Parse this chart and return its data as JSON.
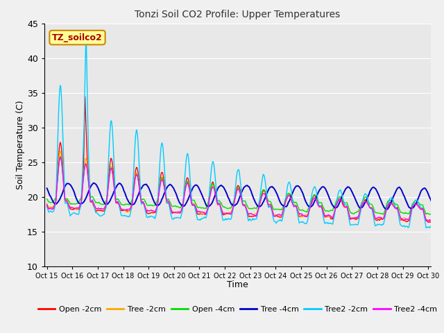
{
  "title": "Tonzi Soil CO2 Profile: Upper Temperatures",
  "xlabel": "Time",
  "ylabel": "Soil Temperature (C)",
  "ylim": [
    10,
    45
  ],
  "yticks": [
    10,
    15,
    20,
    25,
    30,
    35,
    40,
    45
  ],
  "fig_bg_color": "#f0f0f0",
  "plot_bg_color": "#e8e8e8",
  "series_colors": {
    "Open -2cm": "#ff0000",
    "Tree -2cm": "#ffa500",
    "Open -4cm": "#00dd00",
    "Tree -4cm": "#0000cc",
    "Tree2 -2cm": "#00ccff",
    "Tree2 -4cm": "#ff00ff"
  },
  "xtick_labels": [
    "Oct 15",
    "Oct 16",
    "Oct 17",
    "Oct 18",
    "Oct 19",
    "Oct 20",
    "Oct 21",
    "Oct 22",
    "Oct 23",
    "Oct 24",
    "Oct 25",
    "Oct 26",
    "Oct 27",
    "Oct 28",
    "Oct 29",
    "Oct 30"
  ],
  "annotation_text": "TZ_soilco2",
  "annotation_color": "#aa0000",
  "annotation_bg": "#ffff99",
  "annotation_border": "#cc8800",
  "grid_color": "#ffffff",
  "linewidth": 1.0
}
